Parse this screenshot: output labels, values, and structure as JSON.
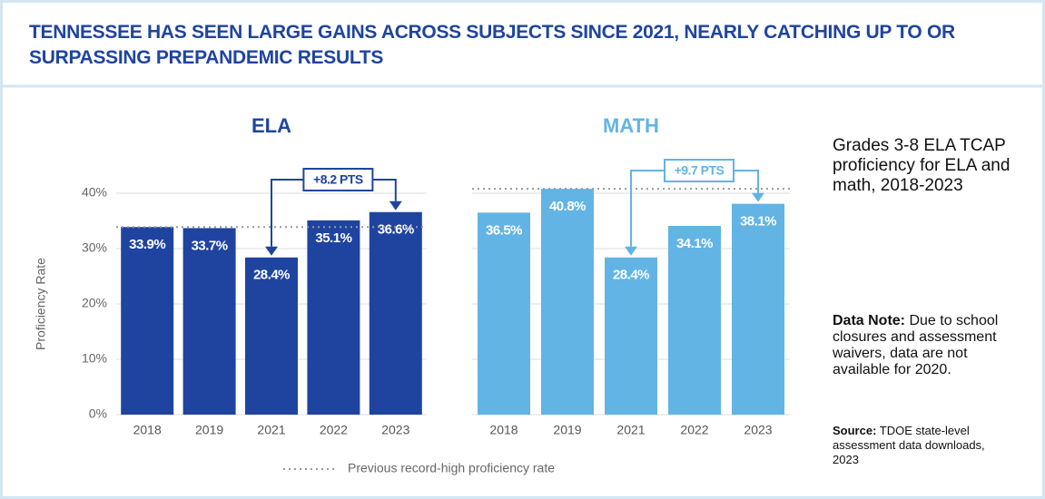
{
  "header": {
    "title": "TENNESSEE HAS SEEN LARGE GAINS ACROSS SUBJECTS SINCE 2021, NEARLY CATCHING UP TO OR SURPASSING PREPANDEMIC RESULTS"
  },
  "y_axis_label": "Proficiency Rate",
  "legend": "Previous record-high proficiency rate",
  "side": {
    "subtitle": "Grades 3-8 ELA TCAP proficiency for ELA and math, 2018-2023",
    "note_label": "Data Note:",
    "note": "Due to school closures and assessment waivers, data are not available for 2020.",
    "source_label": "Source:",
    "source": "TDOE state-level assessment data downloads, 2023"
  },
  "chart_data": [
    {
      "type": "bar",
      "title": "ELA",
      "color": "#1f44a0",
      "categories": [
        "2018",
        "2019",
        "2021",
        "2022",
        "2023"
      ],
      "values": [
        33.9,
        33.7,
        28.4,
        35.1,
        36.6
      ],
      "value_labels": [
        "33.9%",
        "33.7%",
        "28.4%",
        "35.1%",
        "36.6%"
      ],
      "ylim": [
        0,
        44
      ],
      "yticks": [
        {
          "value": 0,
          "label": "0%"
        },
        {
          "value": 10,
          "label": "10%"
        },
        {
          "value": 20,
          "label": "20%"
        },
        {
          "value": 30,
          "label": "30%"
        },
        {
          "value": 40,
          "label": "40%"
        }
      ],
      "grid": true,
      "reference_line": 33.9,
      "annotation": "+8.2 PTS"
    },
    {
      "type": "bar",
      "title": "MATH",
      "color": "#62b4e4",
      "categories": [
        "2018",
        "2019",
        "2021",
        "2022",
        "2023"
      ],
      "values": [
        36.5,
        40.8,
        28.4,
        34.1,
        38.1
      ],
      "value_labels": [
        "36.5%",
        "40.8%",
        "28.4%",
        "34.1%",
        "38.1%"
      ],
      "ylim": [
        0,
        44
      ],
      "yticks": [
        0,
        10,
        20,
        30,
        40
      ],
      "grid": true,
      "reference_line": 40.8,
      "annotation": "+9.7 PTS"
    }
  ]
}
